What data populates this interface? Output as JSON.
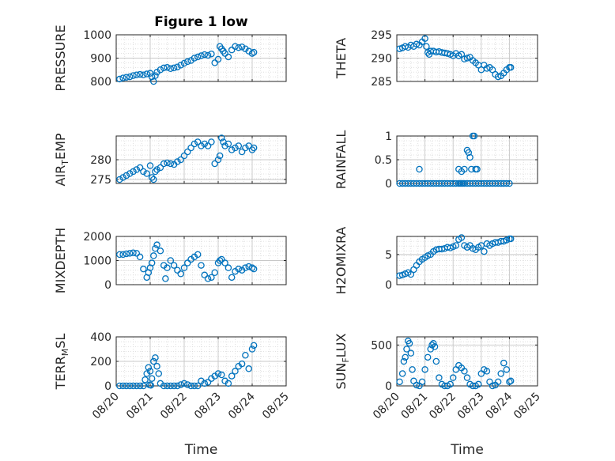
{
  "figure": {
    "title": "Figure 1 low",
    "xlabel": "Time",
    "x_ticks": [
      "08/20",
      "08/21",
      "08/22",
      "08/23",
      "08/24",
      "08/25"
    ],
    "colors": {
      "marker": "#0072bd",
      "axis": "#262626",
      "grid": "#d9d9d9"
    }
  },
  "chart_data": [
    {
      "type": "scatter",
      "title": "Figure 1 low",
      "ylabel": "PRESSURE",
      "xlim": [
        0,
        5
      ],
      "ylim": [
        800,
        1000
      ],
      "yticks": [
        800,
        900,
        1000
      ],
      "grid": true,
      "marker": "open-circle",
      "x": [
        0.1,
        0.2,
        0.3,
        0.4,
        0.5,
        0.6,
        0.7,
        0.8,
        0.9,
        1.0,
        1.05,
        1.1,
        1.15,
        1.2,
        1.3,
        1.4,
        1.5,
        1.6,
        1.7,
        1.8,
        1.9,
        2.0,
        2.1,
        2.2,
        2.3,
        2.4,
        2.5,
        2.6,
        2.7,
        2.8,
        2.9,
        3.0,
        3.05,
        3.1,
        3.15,
        3.2,
        3.3,
        3.4,
        3.5,
        3.6,
        3.7,
        3.8,
        3.9,
        4.0,
        4.05
      ],
      "y": [
        810,
        815,
        818,
        820,
        825,
        828,
        830,
        828,
        832,
        835,
        820,
        800,
        825,
        840,
        850,
        858,
        860,
        855,
        858,
        862,
        870,
        878,
        885,
        890,
        900,
        905,
        910,
        915,
        912,
        918,
        880,
        895,
        950,
        940,
        930,
        920,
        905,
        935,
        950,
        945,
        948,
        940,
        930,
        920,
        925
      ]
    },
    {
      "type": "scatter",
      "ylabel": "THETA",
      "xlim": [
        0,
        5
      ],
      "ylim": [
        285,
        295
      ],
      "yticks": [
        285,
        290,
        295
      ],
      "grid": true,
      "marker": "open-circle",
      "x": [
        0.1,
        0.2,
        0.3,
        0.4,
        0.5,
        0.6,
        0.7,
        0.8,
        0.9,
        1.0,
        1.05,
        1.1,
        1.15,
        1.2,
        1.3,
        1.4,
        1.5,
        1.6,
        1.7,
        1.8,
        1.9,
        2.0,
        2.1,
        2.2,
        2.3,
        2.4,
        2.5,
        2.6,
        2.7,
        2.8,
        2.9,
        3.0,
        3.1,
        3.2,
        3.3,
        3.4,
        3.5,
        3.6,
        3.7,
        3.8,
        3.9,
        4.0,
        4.05
      ],
      "y": [
        292,
        292.2,
        292.5,
        292.3,
        292.8,
        292.5,
        293,
        292.8,
        293.5,
        294.2,
        292.5,
        291.2,
        290.8,
        291.5,
        291.5,
        291.3,
        291.4,
        291.2,
        291.1,
        291,
        290.8,
        290.5,
        291,
        290.5,
        290.8,
        289.8,
        290,
        290.2,
        289.5,
        289,
        288.5,
        287.5,
        288.5,
        287.8,
        288,
        287.5,
        286.5,
        286,
        286.2,
        286.8,
        287.5,
        288,
        288
      ]
    },
    {
      "type": "scatter",
      "ylabel": "AIR_TEMP",
      "xlim": [
        0,
        5
      ],
      "ylim": [
        274,
        286
      ],
      "yticks": [
        275,
        280
      ],
      "grid": true,
      "marker": "open-circle",
      "x": [
        0.1,
        0.2,
        0.3,
        0.4,
        0.5,
        0.6,
        0.7,
        0.8,
        0.9,
        1.0,
        1.05,
        1.1,
        1.15,
        1.2,
        1.3,
        1.4,
        1.5,
        1.6,
        1.7,
        1.8,
        1.9,
        2.0,
        2.1,
        2.2,
        2.3,
        2.4,
        2.5,
        2.6,
        2.7,
        2.8,
        2.9,
        3.0,
        3.05,
        3.1,
        3.15,
        3.2,
        3.3,
        3.4,
        3.5,
        3.6,
        3.7,
        3.8,
        3.9,
        4.0,
        4.05
      ],
      "y": [
        275,
        275.5,
        276,
        276.5,
        277,
        277.5,
        278,
        277,
        276.5,
        278.5,
        275.5,
        275,
        277,
        277.5,
        278,
        279,
        279.2,
        279,
        278.8,
        279.5,
        280,
        281,
        282,
        283,
        284,
        284.5,
        283.5,
        284,
        283.5,
        284.5,
        279,
        280,
        281,
        285.5,
        284.5,
        283.5,
        284,
        282.5,
        283,
        283.5,
        282,
        283,
        283.5,
        282.5,
        283
      ]
    },
    {
      "type": "scatter",
      "ylabel": "RAINFALL",
      "xlim": [
        0,
        5
      ],
      "ylim": [
        0,
        1
      ],
      "yticks": [
        0,
        0.5,
        1
      ],
      "grid": true,
      "marker": "open-circle",
      "x": [
        0.1,
        0.2,
        0.3,
        0.4,
        0.5,
        0.6,
        0.7,
        0.8,
        0.9,
        1.0,
        1.1,
        1.2,
        1.3,
        1.4,
        1.5,
        1.6,
        1.7,
        1.8,
        1.9,
        2.0,
        2.1,
        2.2,
        2.25,
        2.3,
        2.35,
        2.4,
        2.5,
        2.6,
        2.7,
        2.8,
        2.9,
        3.0,
        3.1,
        3.2,
        3.3,
        3.4,
        3.5,
        3.6,
        3.7,
        3.8,
        3.9,
        4.0,
        0.8,
        2.2,
        2.3,
        2.4,
        2.5,
        2.55,
        2.6,
        2.65,
        2.7,
        2.75,
        2.8,
        2.85
      ],
      "y": [
        0,
        0,
        0,
        0,
        0,
        0,
        0,
        0,
        0,
        0,
        0,
        0,
        0,
        0,
        0,
        0,
        0,
        0,
        0,
        0,
        0,
        0,
        0,
        0,
        0,
        0,
        0,
        0,
        0,
        0,
        0,
        0,
        0,
        0,
        0,
        0,
        0,
        0,
        0,
        0,
        0,
        0,
        0.3,
        0.3,
        0.25,
        0.3,
        0.7,
        0.65,
        0.55,
        0.3,
        1.0,
        1.0,
        0.3,
        0.3
      ]
    },
    {
      "type": "scatter",
      "ylabel": "MIXDEPTH",
      "xlim": [
        0,
        5
      ],
      "ylim": [
        0,
        2000
      ],
      "yticks": [
        0,
        1000,
        2000
      ],
      "grid": true,
      "marker": "open-circle",
      "x": [
        0.1,
        0.2,
        0.3,
        0.4,
        0.5,
        0.6,
        0.7,
        0.8,
        0.9,
        0.95,
        1.0,
        1.05,
        1.1,
        1.15,
        1.2,
        1.3,
        1.4,
        1.45,
        1.5,
        1.6,
        1.7,
        1.8,
        1.9,
        2.0,
        2.1,
        2.2,
        2.3,
        2.4,
        2.5,
        2.6,
        2.7,
        2.8,
        2.9,
        3.0,
        3.05,
        3.1,
        3.2,
        3.3,
        3.4,
        3.5,
        3.6,
        3.7,
        3.8,
        3.9,
        4.0,
        4.05
      ],
      "y": [
        1250,
        1250,
        1280,
        1300,
        1320,
        1300,
        1150,
        650,
        300,
        500,
        700,
        900,
        1200,
        1500,
        1650,
        1400,
        800,
        250,
        700,
        1000,
        800,
        600,
        450,
        700,
        900,
        1050,
        1150,
        1250,
        800,
        400,
        250,
        300,
        500,
        900,
        1000,
        1050,
        900,
        700,
        300,
        550,
        650,
        600,
        700,
        750,
        700,
        650
      ]
    },
    {
      "type": "scatter",
      "ylabel": "H2OMIXRA",
      "xlim": [
        0,
        5
      ],
      "ylim": [
        0,
        8
      ],
      "yticks": [
        0,
        5
      ],
      "grid": true,
      "marker": "open-circle",
      "x": [
        0.1,
        0.2,
        0.3,
        0.4,
        0.5,
        0.6,
        0.7,
        0.8,
        0.9,
        1.0,
        1.1,
        1.2,
        1.3,
        1.4,
        1.5,
        1.6,
        1.7,
        1.8,
        1.9,
        2.0,
        2.1,
        2.2,
        2.3,
        2.4,
        2.5,
        2.6,
        2.7,
        2.8,
        2.9,
        3.0,
        3.1,
        3.2,
        3.3,
        3.4,
        3.5,
        3.6,
        3.7,
        3.8,
        3.9,
        4.0,
        4.05
      ],
      "y": [
        1.5,
        1.6,
        1.8,
        2.0,
        1.7,
        2.5,
        3.2,
        3.8,
        4.2,
        4.5,
        4.8,
        5.0,
        5.5,
        5.8,
        5.9,
        5.9,
        6.0,
        6.2,
        6.1,
        6.3,
        6.5,
        7.5,
        7.8,
        6.5,
        6.2,
        6.5,
        6.0,
        5.8,
        6.2,
        6.5,
        5.5,
        6.8,
        6.5,
        6.8,
        7.0,
        7.0,
        7.2,
        7.2,
        7.4,
        7.6,
        7.6
      ]
    },
    {
      "type": "scatter",
      "ylabel": "TERR_MSL",
      "xlim": [
        0,
        5
      ],
      "ylim": [
        0,
        400
      ],
      "yticks": [
        0,
        200,
        400
      ],
      "grid": true,
      "marker": "open-circle",
      "x": [
        0.1,
        0.2,
        0.3,
        0.4,
        0.5,
        0.6,
        0.7,
        0.8,
        0.85,
        0.9,
        0.95,
        1.0,
        1.05,
        1.1,
        1.15,
        1.2,
        1.25,
        1.3,
        1.4,
        1.5,
        1.6,
        1.7,
        1.8,
        1.9,
        2.0,
        2.1,
        2.2,
        2.3,
        2.4,
        2.5,
        2.6,
        2.7,
        2.8,
        2.9,
        3.0,
        3.1,
        3.2,
        3.3,
        3.4,
        3.5,
        3.6,
        3.7,
        3.8,
        3.9,
        4.0,
        4.05,
        1.02,
        0.98
      ],
      "y": [
        0,
        0,
        0,
        0,
        0,
        0,
        0,
        0,
        50,
        100,
        150,
        120,
        60,
        200,
        230,
        160,
        100,
        20,
        0,
        0,
        0,
        0,
        0,
        10,
        20,
        10,
        0,
        0,
        0,
        40,
        20,
        30,
        60,
        80,
        100,
        90,
        40,
        20,
        80,
        120,
        160,
        180,
        250,
        140,
        300,
        330,
        5,
        8
      ]
    },
    {
      "type": "scatter",
      "ylabel": "SUN_FLUX",
      "xlim": [
        0,
        5
      ],
      "ylim": [
        0,
        600
      ],
      "yticks": [
        0,
        500
      ],
      "grid": true,
      "marker": "open-circle",
      "x": [
        0.1,
        0.2,
        0.25,
        0.3,
        0.35,
        0.4,
        0.45,
        0.5,
        0.55,
        0.6,
        0.7,
        0.8,
        0.9,
        1.0,
        1.1,
        1.2,
        1.25,
        1.3,
        1.35,
        1.4,
        1.5,
        1.6,
        1.7,
        1.8,
        1.9,
        2.0,
        2.1,
        2.2,
        2.3,
        2.4,
        2.5,
        2.6,
        2.7,
        2.8,
        2.9,
        3.0,
        3.1,
        3.2,
        3.3,
        3.4,
        3.5,
        3.6,
        3.7,
        3.8,
        3.9,
        4.0,
        4.05
      ],
      "y": [
        50,
        150,
        300,
        350,
        450,
        550,
        520,
        400,
        200,
        60,
        10,
        0,
        50,
        200,
        350,
        450,
        500,
        520,
        480,
        300,
        100,
        20,
        0,
        0,
        20,
        100,
        200,
        250,
        220,
        180,
        100,
        20,
        0,
        0,
        20,
        150,
        200,
        180,
        50,
        0,
        10,
        50,
        150,
        280,
        200,
        50,
        60
      ]
    }
  ]
}
